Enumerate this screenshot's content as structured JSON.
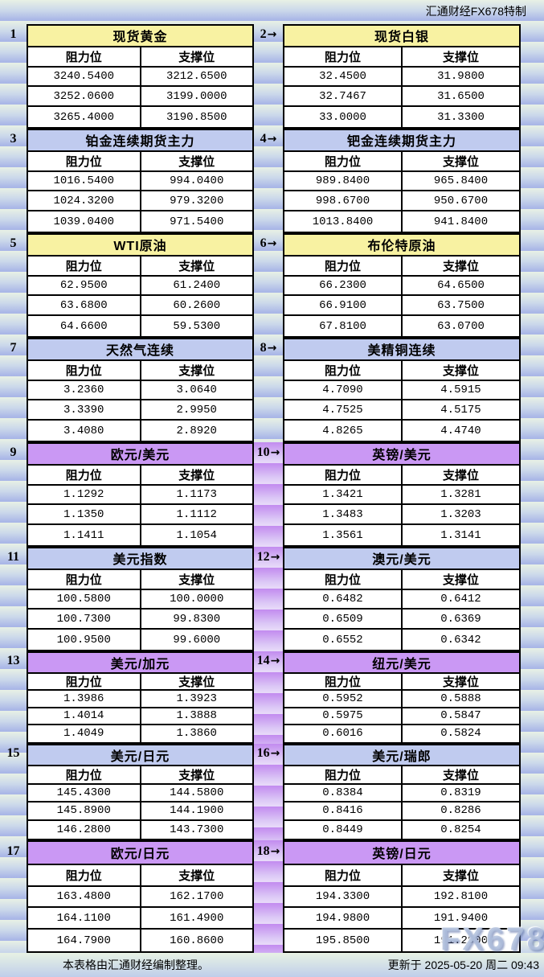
{
  "header": {
    "brand": "汇通财经FX678特制"
  },
  "labels": {
    "resistance": "阻力位",
    "support": "支撑位"
  },
  "icons": {
    "right_arrow": "→"
  },
  "title_colors": {
    "yellow": "#f8f2a2",
    "blue": "#c0cbef",
    "purple": "#ca98f4"
  },
  "stripe_colors": {
    "band_top": "#e8f1e5",
    "band_bottom": "#a9b6e7",
    "purple_band_top": "#c28bef",
    "purple_band_bottom": "#e7d9f9"
  },
  "chart_data": [
    {
      "type": "table",
      "index": "1",
      "title": "现货黄金",
      "theme": "yellow",
      "columns": [
        "阻力位",
        "支撑位"
      ],
      "rows": [
        [
          "3240.5400",
          "3212.6500"
        ],
        [
          "3252.0600",
          "3199.0000"
        ],
        [
          "3265.4000",
          "3190.8500"
        ]
      ]
    },
    {
      "type": "table",
      "index": "2",
      "title": "现货白银",
      "theme": "yellow",
      "columns": [
        "阻力位",
        "支撑位"
      ],
      "rows": [
        [
          "32.4500",
          "31.9800"
        ],
        [
          "32.7467",
          "31.6500"
        ],
        [
          "33.0000",
          "31.3300"
        ]
      ]
    },
    {
      "type": "table",
      "index": "3",
      "title": "铂金连续期货主力",
      "theme": "blue",
      "columns": [
        "阻力位",
        "支撑位"
      ],
      "rows": [
        [
          "1016.5400",
          "994.0400"
        ],
        [
          "1024.3200",
          "979.3200"
        ],
        [
          "1039.0400",
          "971.5400"
        ]
      ]
    },
    {
      "type": "table",
      "index": "4",
      "title": "钯金连续期货主力",
      "theme": "blue",
      "columns": [
        "阻力位",
        "支撑位"
      ],
      "rows": [
        [
          "989.8400",
          "965.8400"
        ],
        [
          "998.6700",
          "950.6700"
        ],
        [
          "1013.8400",
          "941.8400"
        ]
      ]
    },
    {
      "type": "table",
      "index": "5",
      "title": "WTI原油",
      "theme": "yellow",
      "columns": [
        "阻力位",
        "支撑位"
      ],
      "rows": [
        [
          "62.9500",
          "61.2400"
        ],
        [
          "63.6800",
          "60.2600"
        ],
        [
          "64.6600",
          "59.5300"
        ]
      ]
    },
    {
      "type": "table",
      "index": "6",
      "title": "布伦特原油",
      "theme": "yellow",
      "columns": [
        "阻力位",
        "支撑位"
      ],
      "rows": [
        [
          "66.2300",
          "64.6500"
        ],
        [
          "66.9100",
          "63.7500"
        ],
        [
          "67.8100",
          "63.0700"
        ]
      ]
    },
    {
      "type": "table",
      "index": "7",
      "title": "天然气连续",
      "theme": "blue",
      "columns": [
        "阻力位",
        "支撑位"
      ],
      "rows": [
        [
          "3.2360",
          "3.0640"
        ],
        [
          "3.3390",
          "2.9950"
        ],
        [
          "3.4080",
          "2.8920"
        ]
      ]
    },
    {
      "type": "table",
      "index": "8",
      "title": "美精铜连续",
      "theme": "blue",
      "columns": [
        "阻力位",
        "支撑位"
      ],
      "rows": [
        [
          "4.7090",
          "4.5915"
        ],
        [
          "4.7525",
          "4.5175"
        ],
        [
          "4.8265",
          "4.4740"
        ]
      ]
    },
    {
      "type": "table",
      "index": "9",
      "title": "欧元/美元",
      "theme": "purple",
      "columns": [
        "阻力位",
        "支撑位"
      ],
      "rows": [
        [
          "1.1292",
          "1.1173"
        ],
        [
          "1.1350",
          "1.1112"
        ],
        [
          "1.1411",
          "1.1054"
        ]
      ]
    },
    {
      "type": "table",
      "index": "10",
      "title": "英镑/美元",
      "theme": "purple",
      "columns": [
        "阻力位",
        "支撑位"
      ],
      "rows": [
        [
          "1.3421",
          "1.3281"
        ],
        [
          "1.3483",
          "1.3203"
        ],
        [
          "1.3561",
          "1.3141"
        ]
      ]
    },
    {
      "type": "table",
      "index": "11",
      "title": "美元指数",
      "theme": "blue",
      "columns": [
        "阻力位",
        "支撑位"
      ],
      "rows": [
        [
          "100.5800",
          "100.0000"
        ],
        [
          "100.7300",
          "99.8300"
        ],
        [
          "100.9500",
          "99.6000"
        ]
      ]
    },
    {
      "type": "table",
      "index": "12",
      "title": "澳元/美元",
      "theme": "blue",
      "columns": [
        "阻力位",
        "支撑位"
      ],
      "rows": [
        [
          "0.6482",
          "0.6412"
        ],
        [
          "0.6509",
          "0.6369"
        ],
        [
          "0.6552",
          "0.6342"
        ]
      ]
    },
    {
      "type": "table",
      "index": "13",
      "title": "美元/加元",
      "theme": "purple",
      "columns": [
        "阻力位",
        "支撑位"
      ],
      "rows": [
        [
          "1.3986",
          "1.3923"
        ],
        [
          "1.4014",
          "1.3888"
        ],
        [
          "1.4049",
          "1.3860"
        ]
      ]
    },
    {
      "type": "table",
      "index": "14",
      "title": "纽元/美元",
      "theme": "purple",
      "columns": [
        "阻力位",
        "支撑位"
      ],
      "rows": [
        [
          "0.5952",
          "0.5888"
        ],
        [
          "0.5975",
          "0.5847"
        ],
        [
          "0.6016",
          "0.5824"
        ]
      ]
    },
    {
      "type": "table",
      "index": "15",
      "title": "美元/日元",
      "theme": "blue",
      "columns": [
        "阻力位",
        "支撑位"
      ],
      "rows": [
        [
          "145.4300",
          "144.5800"
        ],
        [
          "145.8900",
          "144.1900"
        ],
        [
          "146.2800",
          "143.7300"
        ]
      ]
    },
    {
      "type": "table",
      "index": "16",
      "title": "美元/瑞郎",
      "theme": "blue",
      "columns": [
        "阻力位",
        "支撑位"
      ],
      "rows": [
        [
          "0.8384",
          "0.8319"
        ],
        [
          "0.8416",
          "0.8286"
        ],
        [
          "0.8449",
          "0.8254"
        ]
      ]
    },
    {
      "type": "table",
      "index": "17",
      "title": "欧元/日元",
      "theme": "purple",
      "columns": [
        "阻力位",
        "支撑位"
      ],
      "rows": [
        [
          "163.4800",
          "162.1700"
        ],
        [
          "164.1100",
          "161.4900"
        ],
        [
          "164.7900",
          "160.8600"
        ]
      ]
    },
    {
      "type": "table",
      "index": "18",
      "title": "英镑/日元",
      "theme": "purple",
      "columns": [
        "阻力位",
        "支撑位"
      ],
      "rows": [
        [
          "194.3300",
          "192.8100"
        ],
        [
          "194.9800",
          "191.9400"
        ],
        [
          "195.8500",
          "191.2900"
        ]
      ]
    }
  ],
  "footer": {
    "source": "本表格由汇通财经编制整理。",
    "updated": "更新于 2025-05-20 周二 09:43"
  },
  "watermark": "FX678"
}
